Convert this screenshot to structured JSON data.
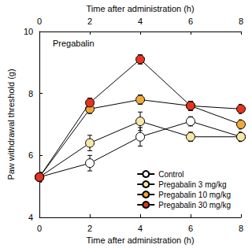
{
  "chart_data": {
    "type": "line",
    "title": "Pregabalin",
    "xlabel": "Time after administration (h)",
    "ylabel": "Paw withdrawal threshold (g)",
    "x2label": "Time after administration (h)",
    "x": [
      0,
      2,
      4,
      6,
      8
    ],
    "xlim": [
      0,
      8
    ],
    "xticks": [
      0,
      2,
      4,
      6,
      8
    ],
    "x2lim": [
      0,
      8
    ],
    "x2ticks": [
      0,
      2,
      4,
      6,
      8
    ],
    "ylim": [
      4,
      10
    ],
    "yticks": [
      4,
      6,
      8,
      10
    ],
    "grid": false,
    "legend": "lower right",
    "marker": "circle",
    "line_style": "solid",
    "series": [
      {
        "name": "Control",
        "color": "#ffffff",
        "values": [
          5.3,
          5.75,
          6.6,
          7.1,
          6.6
        ],
        "errors": [
          0.15,
          0.25,
          0.3,
          0.15,
          0.15
        ]
      },
      {
        "name": "Pregabalin 3 mg/kg",
        "color": "#f6e7a6",
        "values": [
          5.3,
          6.4,
          7.1,
          6.6,
          6.6
        ],
        "errors": [
          0.15,
          0.25,
          0.3,
          0.15,
          0.15
        ]
      },
      {
        "name": "Pregabalin 10 mg/kg",
        "color": "#f2a93b",
        "values": [
          5.3,
          7.5,
          7.8,
          7.6,
          7.0
        ],
        "errors": [
          0.15,
          0.15,
          0.15,
          0.15,
          0.15
        ]
      },
      {
        "name": "Pregabalin 30 mg/kg",
        "color": "#e2341f",
        "values": [
          5.3,
          7.7,
          9.1,
          7.6,
          7.5
        ],
        "errors": [
          0.15,
          0.15,
          0.15,
          0.15,
          0.15
        ]
      }
    ]
  }
}
